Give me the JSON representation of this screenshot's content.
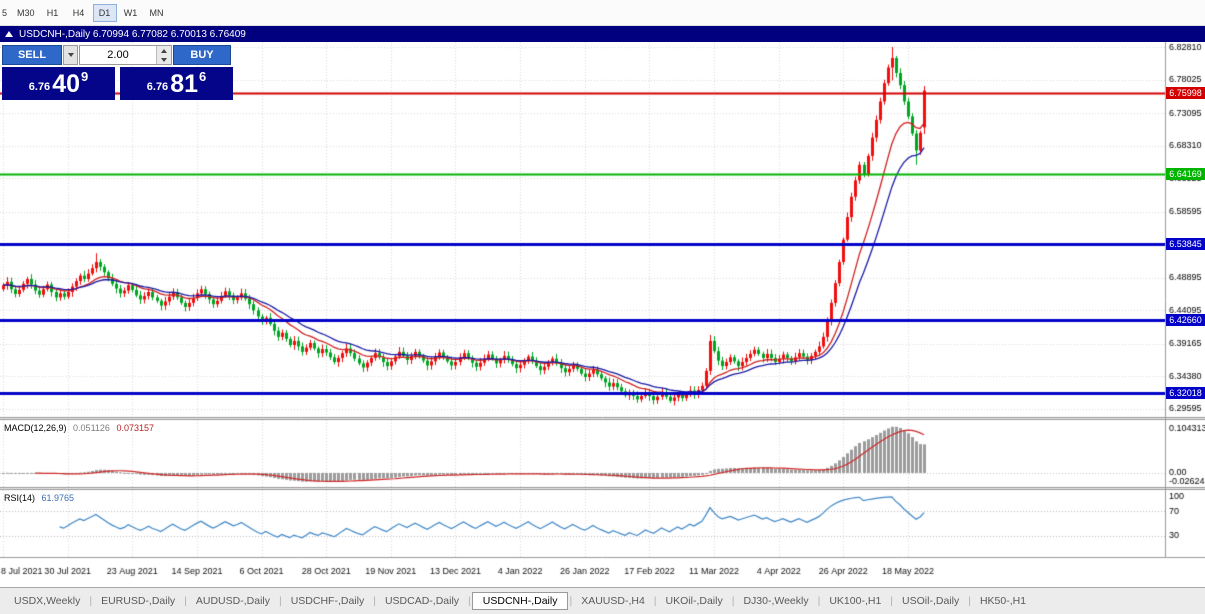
{
  "toolbar": {
    "timeframes": [
      "5",
      "M30",
      "H1",
      "H4",
      "D1",
      "W1",
      "MN"
    ],
    "active": "D1"
  },
  "chart_window": {
    "title": "USDCNH-,Daily 6.70994 6.77082 6.70013 6.76409"
  },
  "trade_panel": {
    "sell_label": "SELL",
    "buy_label": "BUY",
    "volume": "2.00",
    "sell_price": {
      "prefix": "6.76",
      "big": "40",
      "sup": "9"
    },
    "buy_price": {
      "prefix": "6.76",
      "big": "81",
      "sup": "6"
    }
  },
  "price_axis": {
    "labels": [
      "6.82810",
      "6.78025",
      "6.73095",
      "6.68310",
      "6.63525",
      "6.58595",
      "6.48895",
      "6.44095",
      "6.39165",
      "6.34380",
      "6.29595"
    ]
  },
  "hlines": [
    {
      "price": 6.75998,
      "label": "6.75998",
      "color": "#d40000",
      "width": 2
    },
    {
      "price": 6.64169,
      "label": "6.64169",
      "color": "#00b400",
      "width": 2
    },
    {
      "price": 6.53845,
      "label": "6.53845",
      "color": "#0202c8",
      "width": 3
    },
    {
      "price": 6.4266,
      "label": "6.42660",
      "color": "#0202c8",
      "width": 3
    },
    {
      "price": 6.32018,
      "label": "6.32018",
      "color": "#0202c8",
      "width": 3
    }
  ],
  "chart_data": {
    "type": "candlestick",
    "symbol": "USDCNH-",
    "timeframe": "Daily",
    "current_bar": {
      "open": 6.70994,
      "high": 6.77082,
      "low": 6.70013,
      "close": 6.76409
    },
    "x_labels": [
      "8 Jul 2021",
      "30 Jul 2021",
      "23 Aug 2021",
      "14 Sep 2021",
      "6 Oct 2021",
      "28 Oct 2021",
      "19 Nov 2021",
      "13 Dec 2021",
      "4 Jan 2022",
      "26 Jan 2022",
      "17 Feb 2022",
      "11 Mar 2022",
      "4 Apr 2022",
      "26 Apr 2022",
      "18 May 2022"
    ],
    "x_label_step": 16,
    "price_range": [
      6.2842,
      6.8355
    ],
    "first_open": 6.472,
    "closes": [
      6.478,
      6.483,
      6.472,
      6.465,
      6.471,
      6.48,
      6.487,
      6.479,
      6.47,
      6.464,
      6.472,
      6.479,
      6.468,
      6.46,
      6.466,
      6.461,
      6.468,
      6.476,
      6.484,
      6.492,
      6.487,
      6.495,
      6.503,
      6.512,
      6.505,
      6.497,
      6.488,
      6.48,
      6.473,
      6.466,
      6.47,
      6.478,
      6.471,
      6.463,
      6.457,
      6.462,
      6.468,
      6.46,
      6.455,
      6.448,
      6.454,
      6.461,
      6.468,
      6.46,
      6.452,
      6.446,
      6.452,
      6.459,
      6.466,
      6.472,
      6.465,
      6.457,
      6.45,
      6.455,
      6.462,
      6.469,
      6.463,
      6.456,
      6.46,
      6.466,
      6.458,
      6.45,
      6.441,
      6.432,
      6.424,
      6.43,
      6.421,
      6.411,
      6.402,
      6.408,
      6.399,
      6.39,
      6.396,
      6.388,
      6.38,
      6.386,
      6.393,
      6.385,
      6.378,
      6.384,
      6.379,
      6.372,
      6.365,
      6.371,
      6.378,
      6.385,
      6.378,
      6.37,
      6.363,
      6.357,
      6.364,
      6.371,
      6.378,
      6.372,
      6.365,
      6.359,
      6.366,
      6.373,
      6.38,
      6.374,
      6.368,
      6.374,
      6.38,
      6.374,
      6.367,
      6.36,
      6.366,
      6.373,
      6.379,
      6.372,
      6.366,
      6.36,
      6.365,
      6.372,
      6.378,
      6.371,
      6.364,
      6.358,
      6.364,
      6.37,
      6.376,
      6.37,
      6.363,
      6.368,
      6.374,
      6.368,
      6.362,
      6.356,
      6.361,
      6.367,
      6.373,
      6.366,
      6.359,
      6.353,
      6.358,
      6.364,
      6.37,
      6.363,
      6.356,
      6.35,
      6.355,
      6.361,
      6.355,
      6.348,
      6.343,
      6.348,
      6.354,
      6.347,
      6.341,
      6.335,
      6.329,
      6.334,
      6.328,
      6.322,
      6.316,
      6.321,
      6.315,
      6.31,
      6.315,
      6.321,
      6.315,
      6.309,
      6.314,
      6.32,
      6.314,
      6.308,
      6.313,
      6.318,
      6.312,
      6.317,
      6.323,
      6.318,
      6.324,
      6.33,
      6.352,
      6.396,
      6.381,
      6.367,
      6.359,
      6.365,
      6.372,
      6.366,
      6.359,
      6.365,
      6.371,
      6.377,
      6.383,
      6.377,
      6.371,
      6.377,
      6.371,
      6.365,
      6.37,
      6.376,
      6.371,
      6.366,
      6.372,
      6.378,
      6.373,
      6.368,
      6.374,
      6.38,
      6.388,
      6.402,
      6.425,
      6.452,
      6.481,
      6.512,
      6.545,
      6.578,
      6.608,
      6.632,
      6.655,
      6.641,
      6.668,
      6.695,
      6.721,
      6.748,
      6.775,
      6.798,
      6.812,
      6.79,
      6.772,
      6.748,
      6.726,
      6.701,
      6.676,
      6.702,
      6.764
    ],
    "overrides": {
      "23": [
        6.503,
        6.525,
        6.497,
        6.512
      ],
      "175": [
        6.352,
        6.405,
        6.346,
        6.396
      ],
      "220": [
        6.798,
        6.8281,
        6.779,
        6.812
      ],
      "226": [
        6.701,
        6.706,
        6.655,
        6.676
      ],
      "228": [
        6.70994,
        6.77082,
        6.70013,
        6.76409
      ]
    },
    "ma": [
      {
        "period": 13,
        "color": "#d02020"
      },
      {
        "period": 21,
        "color": "#1a1aa6"
      }
    ],
    "macd": {
      "name": "MACD(12,26,9)",
      "value1": "0.051126",
      "value2": "0.073157",
      "fast": 12,
      "slow": 26,
      "signal": 9,
      "axis_labels": [
        "0.104313",
        "0.00",
        "-0.02624"
      ],
      "histogram_color": "#9c9c9c",
      "signal_color": "#cf2929"
    },
    "rsi": {
      "name": "RSI(14)",
      "value": "61.9765",
      "period": 14,
      "levels": [
        "100",
        "70",
        "30"
      ],
      "line_color": "#3e86c6"
    },
    "up_color": "#f00e0e",
    "down_color": "#00a524",
    "grid_color": "#d8d8d8"
  },
  "tabs": {
    "separator": "|",
    "items": [
      "USDX,Weekly",
      "EURUSD-,Daily",
      "AUDUSD-,Daily",
      "USDCHF-,Daily",
      "USDCAD-,Daily",
      "USDCNH-,Daily",
      "XAUUSD-,H4",
      "UKOil-,Daily",
      "DJ30-,Weekly",
      "UK100-,H1",
      "USOil-,Daily",
      "HK50-,H1"
    ],
    "active": "USDCNH-,Daily"
  }
}
